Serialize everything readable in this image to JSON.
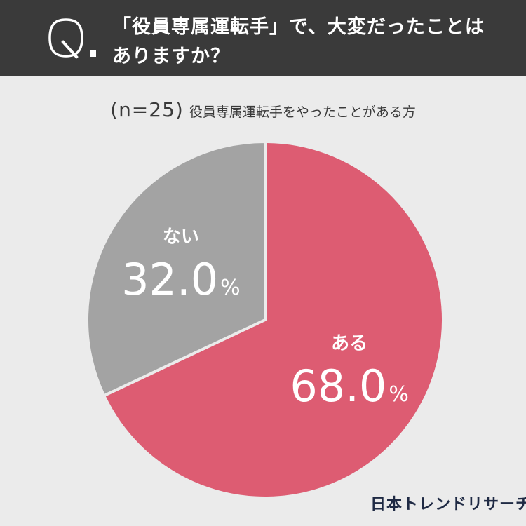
{
  "header": {
    "q_letter": "Q",
    "question_line1": "「役員専属運転手」で、大変だったことは",
    "question_line2": "ありますか？"
  },
  "subtitle": {
    "n_label": "(n=25)",
    "description": "役員専属運転手をやったことがある方"
  },
  "chart_data": {
    "type": "pie",
    "title": "",
    "slices": [
      {
        "label": "ある",
        "value": 68.0,
        "display": "68.0",
        "color": "#dd5c72"
      },
      {
        "label": "ない",
        "value": 32.0,
        "display": "32.0",
        "color": "#a3a3a3"
      }
    ],
    "unit": "%",
    "start": "top",
    "direction": "clockwise",
    "label_color": "#ffffff",
    "separator_color": "#ebebeb"
  },
  "brand": {
    "logo_text": "日本トレンドリサーチ"
  }
}
